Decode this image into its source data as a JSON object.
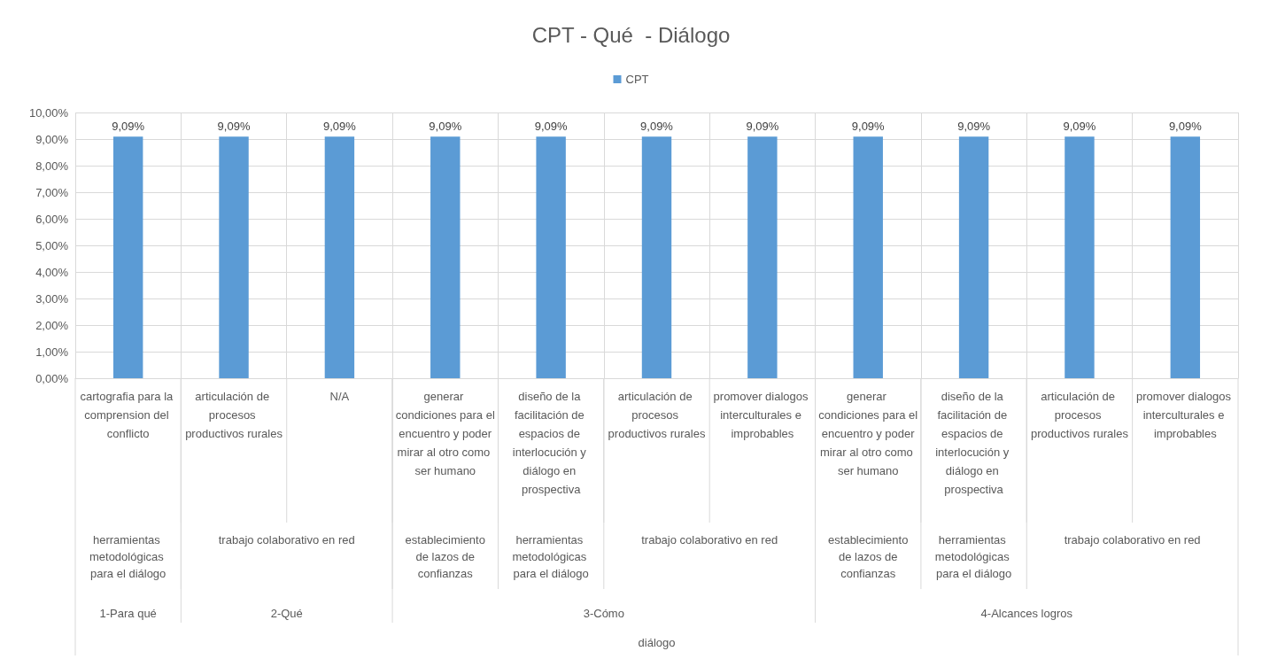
{
  "chart_data": {
    "type": "bar",
    "title": "CPT - Qué  - Diálogo",
    "categories": [
      "cartografia para la comprension del conflicto",
      "articulación de procesos productivos rurales",
      "N/A",
      "generar condiciones para el encuentro y poder mirar al otro como ser humano",
      "diseño de la facilitación de espacios de interlocución y diálogo en prospectiva",
      "articulación de procesos productivos rurales",
      "promover dialogos interculturales e improbables",
      "generar condiciones para el encuentro y poder mirar al otro como ser humano",
      "diseño de la facilitación de espacios de interlocución y diálogo en prospectiva",
      "articulación de procesos productivos rurales",
      "promover dialogos interculturales e improbables"
    ],
    "series": [
      {
        "name": "CPT",
        "color": "#5b9bd5",
        "values": [
          9.09,
          9.09,
          9.09,
          9.09,
          9.09,
          9.09,
          9.09,
          9.09,
          9.09,
          9.09,
          9.09
        ],
        "value_labels": [
          "9,09%",
          "9,09%",
          "9,09%",
          "9,09%",
          "9,09%",
          "9,09%",
          "9,09%",
          "9,09%",
          "9,09%",
          "9,09%",
          "9,09%"
        ]
      }
    ],
    "ylim": [
      0,
      10
    ],
    "yticks": [
      {
        "value": 0,
        "label": "0,00%"
      },
      {
        "value": 1,
        "label": "1,00%"
      },
      {
        "value": 2,
        "label": "2,00%"
      },
      {
        "value": 3,
        "label": "3,00%"
      },
      {
        "value": 4,
        "label": "4,00%"
      },
      {
        "value": 5,
        "label": "5,00%"
      },
      {
        "value": 6,
        "label": "6,00%"
      },
      {
        "value": 7,
        "label": "7,00%"
      },
      {
        "value": 8,
        "label": "8,00%"
      },
      {
        "value": 9,
        "label": "9,00%"
      },
      {
        "value": 10,
        "label": "10,00%"
      }
    ],
    "grid": true,
    "legend": "top",
    "annotations": [
      "herramientas metodológicas para el diálogo",
      "trabajo colaborativo en red",
      "establecimiento de lazos de confianzas",
      "herramientas metodológicas para el diálogo",
      "trabajo colaborativo en red",
      "establecimiento de lazos de confianzas",
      "herramientas metodológicas para el diálogo",
      "trabajo colaborativo en red",
      "1-Para qué",
      "2-Qué",
      "3-Cómo",
      "4-Alcances logros",
      "diálogo"
    ]
  }
}
